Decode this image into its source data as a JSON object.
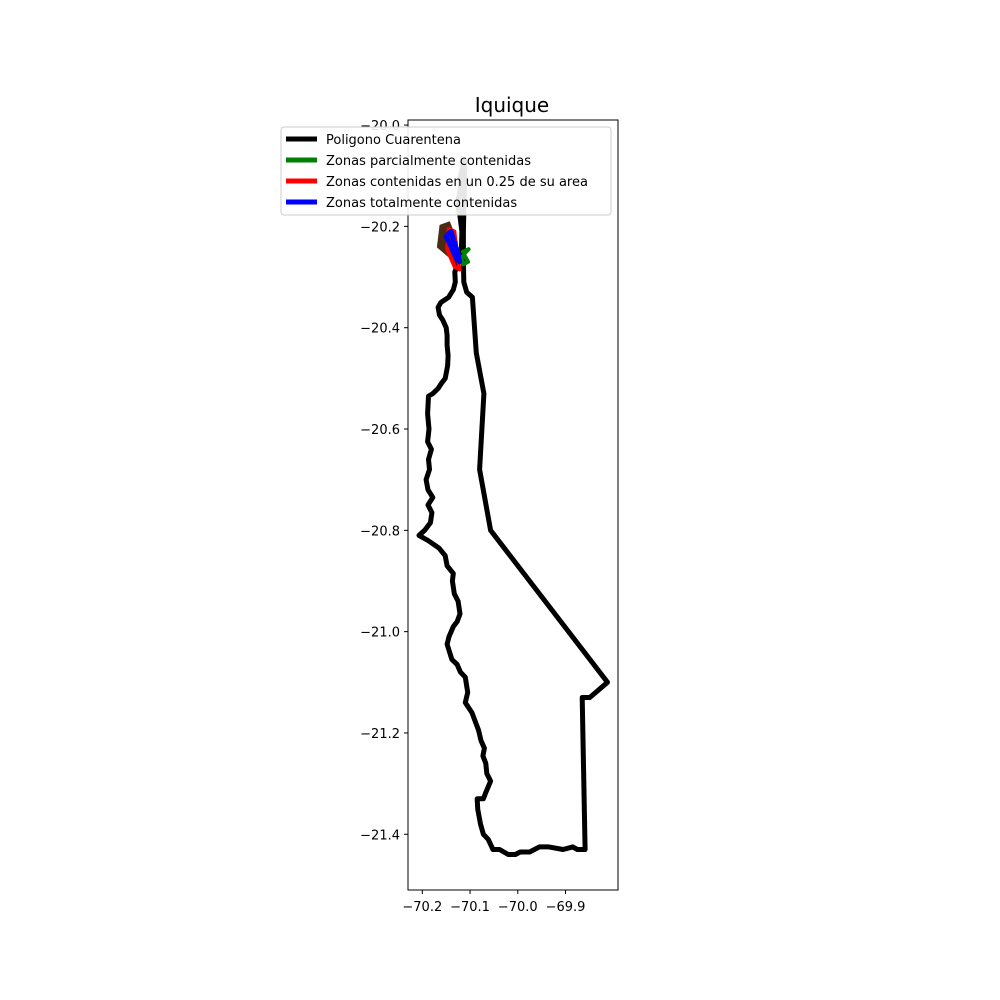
{
  "chart_data": {
    "type": "map",
    "title": "Iquique",
    "xlim": [
      -70.23,
      -69.79
    ],
    "ylim": [
      -21.51,
      -19.99
    ],
    "x_ticks": [
      -70.2,
      -70.1,
      -70.0,
      -69.9
    ],
    "x_tick_labels": [
      "−70.2",
      "−70.1",
      "−70.0",
      "−69.9"
    ],
    "y_ticks": [
      -20.0,
      -20.2,
      -20.4,
      -20.6,
      -20.8,
      -21.0,
      -21.2,
      -21.4
    ],
    "y_tick_labels": [
      "−20.0",
      "−20.2",
      "−20.4",
      "−20.6",
      "−20.8",
      "−21.0",
      "−21.2",
      "−21.4"
    ],
    "legend_position": "top-left",
    "legend": [
      {
        "label": "Poligono Cuarentena",
        "color": "#000000"
      },
      {
        "label": "Zonas parcialmente contenidas",
        "color": "#008000"
      },
      {
        "label": "Zonas contenidas en un 0.25 de su area",
        "color": "#ff0000"
      },
      {
        "label": "Zonas totalmente contenidas",
        "color": "#0000ff"
      }
    ],
    "series": [
      {
        "name": "Poligono Cuarentena",
        "color": "#000000",
        "points": [
          [
            -70.111,
            -20.07
          ],
          [
            -70.112,
            -20.13
          ],
          [
            -70.113,
            -20.17
          ],
          [
            -70.114,
            -20.21
          ],
          [
            -70.114,
            -20.27
          ],
          [
            -70.113,
            -20.31
          ],
          [
            -70.107,
            -20.33
          ],
          [
            -70.095,
            -20.34
          ],
          [
            -70.087,
            -20.45
          ],
          [
            -70.071,
            -20.53
          ],
          [
            -70.08,
            -20.68
          ],
          [
            -70.057,
            -20.8
          ],
          [
            -69.812,
            -21.1
          ],
          [
            -69.849,
            -21.13
          ],
          [
            -69.865,
            -21.13
          ],
          [
            -69.859,
            -21.43
          ],
          [
            -69.875,
            -21.43
          ],
          [
            -69.885,
            -21.425
          ],
          [
            -69.905,
            -21.43
          ],
          [
            -69.935,
            -21.425
          ],
          [
            -69.955,
            -21.425
          ],
          [
            -69.975,
            -21.435
          ],
          [
            -69.995,
            -21.435
          ],
          [
            -70.005,
            -21.44
          ],
          [
            -70.02,
            -21.44
          ],
          [
            -70.038,
            -21.43
          ],
          [
            -70.052,
            -21.43
          ],
          [
            -70.062,
            -21.41
          ],
          [
            -70.072,
            -21.4
          ],
          [
            -70.078,
            -21.38
          ],
          [
            -70.084,
            -21.35
          ],
          [
            -70.085,
            -21.33
          ],
          [
            -70.072,
            -21.33
          ],
          [
            -70.068,
            -21.32
          ],
          [
            -70.057,
            -21.295
          ],
          [
            -70.065,
            -21.28
          ],
          [
            -70.067,
            -21.26
          ],
          [
            -70.073,
            -21.245
          ],
          [
            -70.07,
            -21.23
          ],
          [
            -70.077,
            -21.215
          ],
          [
            -70.082,
            -21.195
          ],
          [
            -70.09,
            -21.175
          ],
          [
            -70.096,
            -21.16
          ],
          [
            -70.11,
            -21.14
          ],
          [
            -70.105,
            -21.12
          ],
          [
            -70.11,
            -21.09
          ],
          [
            -70.12,
            -21.08
          ],
          [
            -70.127,
            -21.065
          ],
          [
            -70.138,
            -21.055
          ],
          [
            -70.148,
            -21.025
          ],
          [
            -70.144,
            -21.01
          ],
          [
            -70.135,
            -20.99
          ],
          [
            -70.127,
            -20.98
          ],
          [
            -70.121,
            -20.965
          ],
          [
            -70.125,
            -20.94
          ],
          [
            -70.133,
            -20.925
          ],
          [
            -70.137,
            -20.9
          ],
          [
            -70.135,
            -20.885
          ],
          [
            -70.148,
            -20.87
          ],
          [
            -70.152,
            -20.85
          ],
          [
            -70.165,
            -20.835
          ],
          [
            -70.188,
            -20.82
          ],
          [
            -70.207,
            -20.81
          ],
          [
            -70.195,
            -20.8
          ],
          [
            -70.183,
            -20.785
          ],
          [
            -70.18,
            -20.765
          ],
          [
            -70.188,
            -20.75
          ],
          [
            -70.178,
            -20.735
          ],
          [
            -70.188,
            -20.72
          ],
          [
            -70.192,
            -20.7
          ],
          [
            -70.185,
            -20.68
          ],
          [
            -70.187,
            -20.66
          ],
          [
            -70.181,
            -20.64
          ],
          [
            -70.189,
            -20.625
          ],
          [
            -70.186,
            -20.6
          ],
          [
            -70.189,
            -20.57
          ],
          [
            -70.187,
            -20.535
          ],
          [
            -70.178,
            -20.53
          ],
          [
            -70.167,
            -20.52
          ],
          [
            -70.16,
            -20.51
          ],
          [
            -70.152,
            -20.5
          ],
          [
            -70.15,
            -20.49
          ],
          [
            -70.147,
            -20.475
          ],
          [
            -70.146,
            -20.455
          ],
          [
            -70.148,
            -20.435
          ],
          [
            -70.148,
            -20.415
          ],
          [
            -70.15,
            -20.4
          ],
          [
            -70.157,
            -20.385
          ],
          [
            -70.164,
            -20.375
          ],
          [
            -70.167,
            -20.36
          ],
          [
            -70.161,
            -20.35
          ],
          [
            -70.145,
            -20.34
          ],
          [
            -70.135,
            -20.325
          ],
          [
            -70.131,
            -20.31
          ],
          [
            -70.132,
            -20.29
          ],
          [
            -70.128,
            -20.28
          ],
          [
            -70.121,
            -20.26
          ],
          [
            -70.118,
            -20.24
          ],
          [
            -70.117,
            -20.21
          ],
          [
            -70.121,
            -20.18
          ],
          [
            -70.126,
            -20.155
          ],
          [
            -70.121,
            -20.13
          ],
          [
            -70.12,
            -20.1
          ],
          [
            -70.115,
            -20.08
          ],
          [
            -70.111,
            -20.07
          ]
        ]
      },
      {
        "name": "Zonas parcialmente contenidas",
        "color": "#008000",
        "points": [
          [
            -70.115,
            -20.25
          ],
          [
            -70.103,
            -20.245
          ],
          [
            -70.113,
            -20.255
          ],
          [
            -70.104,
            -20.27
          ],
          [
            -70.115,
            -20.275
          ],
          [
            -70.118,
            -20.26
          ]
        ]
      },
      {
        "name": "Zonas contenidas en un 0.25 de su area",
        "color": "#ff0000",
        "points": [
          [
            -70.145,
            -20.205
          ],
          [
            -70.133,
            -20.21
          ],
          [
            -70.128,
            -20.25
          ],
          [
            -70.122,
            -20.285
          ],
          [
            -70.132,
            -20.28
          ],
          [
            -70.148,
            -20.245
          ],
          [
            -70.145,
            -20.205
          ]
        ]
      },
      {
        "name": "Zonas totalmente contenidas",
        "color": "#0000ff",
        "points": [
          [
            -70.15,
            -20.22
          ],
          [
            -70.14,
            -20.21
          ],
          [
            -70.125,
            -20.255
          ],
          [
            -70.122,
            -20.27
          ],
          [
            -70.127,
            -20.265
          ],
          [
            -70.15,
            -20.22
          ]
        ]
      }
    ],
    "extra_shapes": [
      {
        "name": "gray-coastal-outline",
        "color": "#cccccc",
        "points": [
          [
            -70.12,
            -20.08
          ],
          [
            -70.1,
            -20.09
          ],
          [
            -70.102,
            -20.14
          ],
          [
            -70.115,
            -20.16
          ],
          [
            -70.128,
            -20.17
          ]
        ]
      },
      {
        "name": "dark-zone-fill",
        "color": "#4a2c12",
        "points": [
          [
            -70.16,
            -20.2
          ],
          [
            -70.145,
            -20.195
          ],
          [
            -70.13,
            -20.23
          ],
          [
            -70.128,
            -20.27
          ],
          [
            -70.14,
            -20.26
          ],
          [
            -70.165,
            -20.24
          ],
          [
            -70.16,
            -20.2
          ]
        ]
      }
    ]
  }
}
